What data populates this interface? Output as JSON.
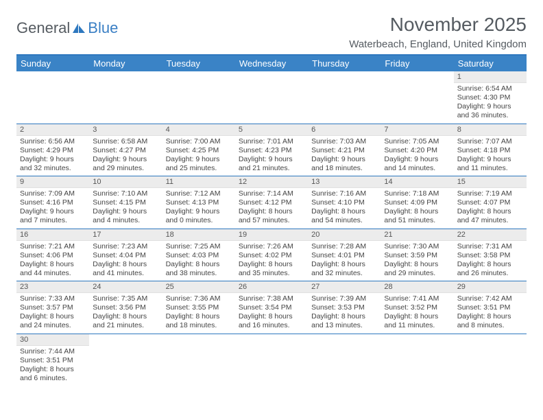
{
  "logo": {
    "text_general": "General",
    "text_blue": "Blue"
  },
  "title": "November 2025",
  "location": "Waterbeach, England, United Kingdom",
  "colors": {
    "header_bg": "#3a83c6",
    "accent_line": "#2e78bf",
    "daynum_bg": "#ececec",
    "text": "#444444"
  },
  "day_headers": [
    "Sunday",
    "Monday",
    "Tuesday",
    "Wednesday",
    "Thursday",
    "Friday",
    "Saturday"
  ],
  "weeks": [
    [
      null,
      null,
      null,
      null,
      null,
      null,
      {
        "n": "1",
        "sunrise": "Sunrise: 6:54 AM",
        "sunset": "Sunset: 4:30 PM",
        "daylight": "Daylight: 9 hours and 36 minutes."
      }
    ],
    [
      {
        "n": "2",
        "sunrise": "Sunrise: 6:56 AM",
        "sunset": "Sunset: 4:29 PM",
        "daylight": "Daylight: 9 hours and 32 minutes."
      },
      {
        "n": "3",
        "sunrise": "Sunrise: 6:58 AM",
        "sunset": "Sunset: 4:27 PM",
        "daylight": "Daylight: 9 hours and 29 minutes."
      },
      {
        "n": "4",
        "sunrise": "Sunrise: 7:00 AM",
        "sunset": "Sunset: 4:25 PM",
        "daylight": "Daylight: 9 hours and 25 minutes."
      },
      {
        "n": "5",
        "sunrise": "Sunrise: 7:01 AM",
        "sunset": "Sunset: 4:23 PM",
        "daylight": "Daylight: 9 hours and 21 minutes."
      },
      {
        "n": "6",
        "sunrise": "Sunrise: 7:03 AM",
        "sunset": "Sunset: 4:21 PM",
        "daylight": "Daylight: 9 hours and 18 minutes."
      },
      {
        "n": "7",
        "sunrise": "Sunrise: 7:05 AM",
        "sunset": "Sunset: 4:20 PM",
        "daylight": "Daylight: 9 hours and 14 minutes."
      },
      {
        "n": "8",
        "sunrise": "Sunrise: 7:07 AM",
        "sunset": "Sunset: 4:18 PM",
        "daylight": "Daylight: 9 hours and 11 minutes."
      }
    ],
    [
      {
        "n": "9",
        "sunrise": "Sunrise: 7:09 AM",
        "sunset": "Sunset: 4:16 PM",
        "daylight": "Daylight: 9 hours and 7 minutes."
      },
      {
        "n": "10",
        "sunrise": "Sunrise: 7:10 AM",
        "sunset": "Sunset: 4:15 PM",
        "daylight": "Daylight: 9 hours and 4 minutes."
      },
      {
        "n": "11",
        "sunrise": "Sunrise: 7:12 AM",
        "sunset": "Sunset: 4:13 PM",
        "daylight": "Daylight: 9 hours and 0 minutes."
      },
      {
        "n": "12",
        "sunrise": "Sunrise: 7:14 AM",
        "sunset": "Sunset: 4:12 PM",
        "daylight": "Daylight: 8 hours and 57 minutes."
      },
      {
        "n": "13",
        "sunrise": "Sunrise: 7:16 AM",
        "sunset": "Sunset: 4:10 PM",
        "daylight": "Daylight: 8 hours and 54 minutes."
      },
      {
        "n": "14",
        "sunrise": "Sunrise: 7:18 AM",
        "sunset": "Sunset: 4:09 PM",
        "daylight": "Daylight: 8 hours and 51 minutes."
      },
      {
        "n": "15",
        "sunrise": "Sunrise: 7:19 AM",
        "sunset": "Sunset: 4:07 PM",
        "daylight": "Daylight: 8 hours and 47 minutes."
      }
    ],
    [
      {
        "n": "16",
        "sunrise": "Sunrise: 7:21 AM",
        "sunset": "Sunset: 4:06 PM",
        "daylight": "Daylight: 8 hours and 44 minutes."
      },
      {
        "n": "17",
        "sunrise": "Sunrise: 7:23 AM",
        "sunset": "Sunset: 4:04 PM",
        "daylight": "Daylight: 8 hours and 41 minutes."
      },
      {
        "n": "18",
        "sunrise": "Sunrise: 7:25 AM",
        "sunset": "Sunset: 4:03 PM",
        "daylight": "Daylight: 8 hours and 38 minutes."
      },
      {
        "n": "19",
        "sunrise": "Sunrise: 7:26 AM",
        "sunset": "Sunset: 4:02 PM",
        "daylight": "Daylight: 8 hours and 35 minutes."
      },
      {
        "n": "20",
        "sunrise": "Sunrise: 7:28 AM",
        "sunset": "Sunset: 4:01 PM",
        "daylight": "Daylight: 8 hours and 32 minutes."
      },
      {
        "n": "21",
        "sunrise": "Sunrise: 7:30 AM",
        "sunset": "Sunset: 3:59 PM",
        "daylight": "Daylight: 8 hours and 29 minutes."
      },
      {
        "n": "22",
        "sunrise": "Sunrise: 7:31 AM",
        "sunset": "Sunset: 3:58 PM",
        "daylight": "Daylight: 8 hours and 26 minutes."
      }
    ],
    [
      {
        "n": "23",
        "sunrise": "Sunrise: 7:33 AM",
        "sunset": "Sunset: 3:57 PM",
        "daylight": "Daylight: 8 hours and 24 minutes."
      },
      {
        "n": "24",
        "sunrise": "Sunrise: 7:35 AM",
        "sunset": "Sunset: 3:56 PM",
        "daylight": "Daylight: 8 hours and 21 minutes."
      },
      {
        "n": "25",
        "sunrise": "Sunrise: 7:36 AM",
        "sunset": "Sunset: 3:55 PM",
        "daylight": "Daylight: 8 hours and 18 minutes."
      },
      {
        "n": "26",
        "sunrise": "Sunrise: 7:38 AM",
        "sunset": "Sunset: 3:54 PM",
        "daylight": "Daylight: 8 hours and 16 minutes."
      },
      {
        "n": "27",
        "sunrise": "Sunrise: 7:39 AM",
        "sunset": "Sunset: 3:53 PM",
        "daylight": "Daylight: 8 hours and 13 minutes."
      },
      {
        "n": "28",
        "sunrise": "Sunrise: 7:41 AM",
        "sunset": "Sunset: 3:52 PM",
        "daylight": "Daylight: 8 hours and 11 minutes."
      },
      {
        "n": "29",
        "sunrise": "Sunrise: 7:42 AM",
        "sunset": "Sunset: 3:51 PM",
        "daylight": "Daylight: 8 hours and 8 minutes."
      }
    ],
    [
      {
        "n": "30",
        "sunrise": "Sunrise: 7:44 AM",
        "sunset": "Sunset: 3:51 PM",
        "daylight": "Daylight: 8 hours and 6 minutes."
      },
      null,
      null,
      null,
      null,
      null,
      null
    ]
  ]
}
